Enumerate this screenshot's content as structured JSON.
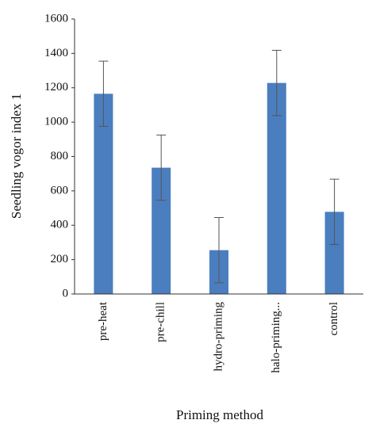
{
  "chart_data": {
    "type": "bar",
    "x_label": "Priming method",
    "y_label": "Seedling vogor index 1",
    "categories": [
      "pre-heat",
      "pre-chill",
      "hydro-priming",
      "halo-priming...",
      "control"
    ],
    "values": [
      1165,
      735,
      255,
      1228,
      478
    ],
    "errors": [
      190,
      190,
      190,
      190,
      190
    ],
    "color": "#4a7ebf",
    "ylim": [
      0,
      1600
    ],
    "yticks": [
      0,
      200,
      400,
      600,
      800,
      1000,
      1200,
      1400,
      1600
    ],
    "grid": false
  }
}
